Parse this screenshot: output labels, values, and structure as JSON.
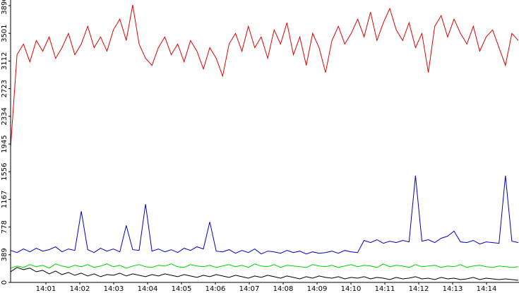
{
  "chart_data": {
    "type": "line",
    "x_labels": [
      "14:01",
      "14:02",
      "14:03",
      "14:04",
      "14:05",
      "14:06",
      "14:07",
      "14:08",
      "14:09",
      "14:10",
      "14:11",
      "14:12",
      "14:13",
      "14:14"
    ],
    "ylim": [
      0,
      3890
    ],
    "yticks": [
      0,
      389,
      778,
      1167,
      1556,
      1945,
      2334,
      2723,
      3112,
      3501,
      3890
    ],
    "series": [
      {
        "color": "#e00000",
        "values": [
          1900,
          3200,
          3350,
          3100,
          3400,
          3250,
          3450,
          3150,
          3300,
          3500,
          3200,
          3350,
          3600,
          3300,
          3450,
          3250,
          3550,
          3700,
          3400,
          3900,
          3350,
          3150,
          3050,
          3300,
          3450,
          3200,
          3350,
          3100,
          3400,
          3250,
          3000,
          3300,
          3150,
          2900,
          3350,
          3500,
          3250,
          3600,
          3300,
          3450,
          3150,
          3550,
          3350,
          3650,
          3200,
          3450,
          3050,
          3500,
          3300,
          2950,
          3400,
          3600,
          3350,
          3500,
          3700,
          3450,
          3800,
          3400,
          3650,
          3850,
          3550,
          3400,
          3650,
          3300,
          3500,
          2950,
          3600,
          3750,
          3450,
          3700,
          3500,
          3350,
          3600,
          3250,
          3450,
          3550,
          3300,
          3050,
          3500,
          3400
        ]
      },
      {
        "color": "#0000c0",
        "values": [
          450,
          420,
          470,
          430,
          480,
          440,
          460,
          500,
          430,
          470,
          450,
          1000,
          460,
          420,
          480,
          440,
          470,
          430,
          800,
          460,
          450,
          1100,
          440,
          470,
          430,
          460,
          420,
          480,
          450,
          500,
          470,
          850,
          440,
          430,
          460,
          410,
          450,
          420,
          470,
          400,
          440,
          430,
          410,
          450,
          420,
          440,
          400,
          430,
          410,
          420,
          440,
          410,
          450,
          430,
          420,
          590,
          560,
          600,
          550,
          580,
          560,
          590,
          570,
          1500,
          580,
          600,
          560,
          620,
          650,
          720,
          570,
          560,
          590,
          540,
          570,
          560,
          550,
          1500,
          580,
          560
        ]
      },
      {
        "color": "#00d000",
        "values": [
          200,
          230,
          210,
          250,
          220,
          240,
          200,
          260,
          230,
          210,
          240,
          220,
          250,
          210,
          230,
          260,
          220,
          240,
          200,
          230,
          250,
          220,
          210,
          240,
          230,
          260,
          220,
          210,
          250,
          230,
          220,
          240,
          210,
          230,
          250,
          220,
          240,
          210,
          260,
          230,
          220,
          250,
          210,
          240,
          230,
          220,
          210,
          250,
          230,
          220,
          240,
          210,
          230,
          250,
          220,
          240,
          230,
          210,
          260,
          220,
          240,
          230,
          210,
          250,
          220,
          230,
          240,
          210,
          230,
          220,
          250,
          210,
          230,
          240,
          220,
          210,
          230,
          220,
          210,
          220
        ]
      },
      {
        "color": "#000000",
        "values": [
          150,
          210,
          180,
          200,
          150,
          170,
          120,
          160,
          110,
          140,
          100,
          130,
          90,
          120,
          80,
          110,
          100,
          130,
          90,
          120,
          100,
          80,
          110,
          90,
          120,
          100,
          80,
          110,
          90,
          70,
          100,
          80,
          110,
          90,
          70,
          100,
          80,
          60,
          90,
          70,
          100,
          80,
          60,
          90,
          70,
          50,
          80,
          60,
          90,
          70,
          60,
          80,
          50,
          70,
          60,
          80,
          50,
          70,
          60,
          40,
          70,
          50,
          60,
          80,
          50,
          60,
          40,
          70,
          50,
          60,
          40,
          50,
          70,
          40,
          60,
          50,
          40,
          50,
          40,
          30
        ]
      }
    ]
  }
}
